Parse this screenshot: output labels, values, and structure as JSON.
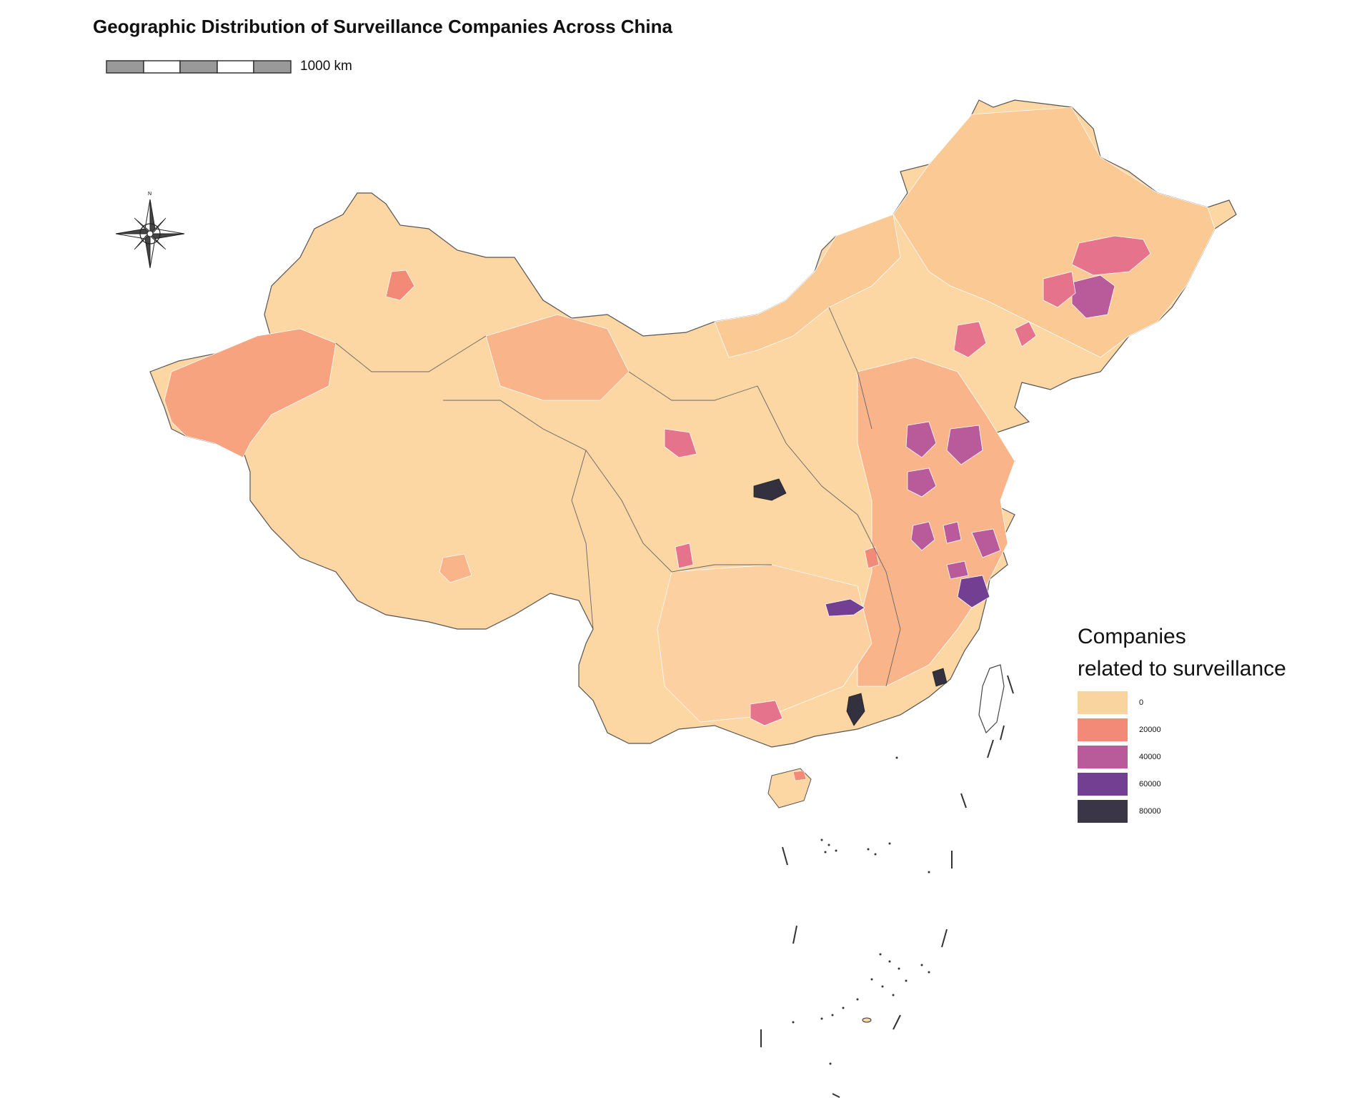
{
  "title": "Geographic Distribution of Surveillance Companies Across China",
  "scale_label": "1000 km",
  "compass_label": "N",
  "legend": {
    "title_line1": "Companies",
    "title_line2": "related to surveillance",
    "items": [
      {
        "label": "0",
        "color": "#fad49e"
      },
      {
        "label": "20000",
        "color": "#f28a77"
      },
      {
        "label": "40000",
        "color": "#b95b9b"
      },
      {
        "label": "60000",
        "color": "#733f92"
      },
      {
        "label": "80000",
        "color": "#3a3547"
      }
    ]
  },
  "colors": {
    "base": "#fcd6a3",
    "light": "#fbc993",
    "mid": "#f7a37f",
    "high": "#e5738b",
    "higher": "#b95b9b",
    "very_high": "#733f92",
    "max": "#333040",
    "border": "#555555"
  },
  "map": {
    "type": "choropleth",
    "region": "China (prefecture-level)",
    "highlight_regions": [
      {
        "name": "Changchun area",
        "class": "higher"
      },
      {
        "name": "Harbin area",
        "class": "high"
      },
      {
        "name": "Shenyang area",
        "class": "high"
      },
      {
        "name": "Jinan area",
        "class": "higher"
      },
      {
        "name": "Qingdao area",
        "class": "higher"
      },
      {
        "name": "Xi'an area",
        "class": "max"
      },
      {
        "name": "Wuhan area",
        "class": "very_high"
      },
      {
        "name": "Hangzhou area",
        "class": "very_high"
      },
      {
        "name": "Shanghai area",
        "class": "higher"
      },
      {
        "name": "Shenzhen/Guangzhou area",
        "class": "max"
      },
      {
        "name": "Chengdu area",
        "class": "high"
      },
      {
        "name": "Lanzhou area",
        "class": "high"
      },
      {
        "name": "Urumqi area",
        "class": "mid"
      },
      {
        "name": "Hefei area",
        "class": "higher"
      },
      {
        "name": "Kunming/Nanning area",
        "class": "high"
      }
    ]
  }
}
